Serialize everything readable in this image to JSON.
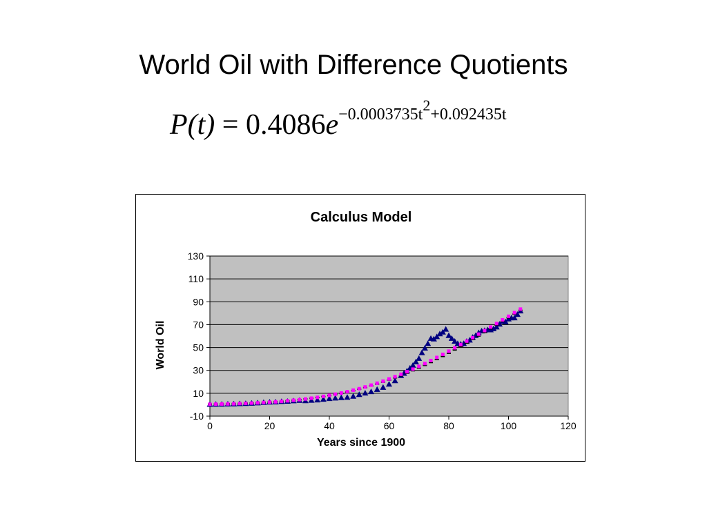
{
  "slide": {
    "title": "World Oil with Difference Quotients",
    "formula": {
      "lhs": "P(t)",
      "equals": " = ",
      "coef": "0.4086",
      "base": "e",
      "exp_part1": "−0.0003735t",
      "exp_square": "2",
      "exp_part2": "+0.092435t"
    }
  },
  "colors": {
    "plot_bg": "#c0c0c0",
    "data_markers": "#000080",
    "model_markers": "#ff00ff",
    "fit_markers": "#000000"
  },
  "chart_data": {
    "type": "scatter",
    "title": "Calculus Model",
    "xlabel": "Years since 1900",
    "ylabel": "World Oil",
    "xlim": [
      0,
      120
    ],
    "ylim": [
      -10,
      130
    ],
    "xticks": [
      0,
      20,
      40,
      60,
      80,
      100,
      120
    ],
    "yticks": [
      -10,
      10,
      30,
      50,
      70,
      90,
      110,
      130
    ],
    "grid": "horizontal",
    "series": [
      {
        "marker": "triangle",
        "color": "#000080",
        "x": [
          0,
          2,
          4,
          6,
          8,
          10,
          12,
          14,
          16,
          18,
          20,
          22,
          24,
          26,
          28,
          30,
          32,
          34,
          36,
          38,
          40,
          42,
          44,
          46,
          48,
          50,
          52,
          54,
          56,
          58,
          60,
          62,
          64,
          65,
          66,
          67,
          68,
          69,
          70,
          71,
          72,
          73,
          74,
          75,
          76,
          77,
          78,
          79,
          80,
          81,
          82,
          83,
          84,
          85,
          86,
          87,
          88,
          89,
          90,
          91,
          92,
          93,
          94,
          95,
          96,
          97,
          98,
          99,
          100,
          101,
          102,
          103,
          104
        ],
        "y": [
          0.3,
          0.4,
          0.5,
          0.6,
          0.7,
          0.9,
          1.1,
          1.3,
          1.6,
          2.0,
          2.3,
          2.4,
          2.8,
          3.0,
          3.4,
          3.8,
          3.5,
          3.9,
          4.2,
          4.8,
          5.4,
          5.8,
          6.2,
          6.5,
          7.4,
          8.9,
          10.2,
          11.4,
          13.4,
          15.2,
          18.0,
          21.0,
          25.5,
          27.5,
          29.5,
          32.0,
          34.5,
          37.5,
          40.5,
          45.5,
          49.5,
          53.5,
          58.0,
          57.5,
          59.5,
          62.0,
          63.5,
          66.0,
          60.5,
          58.0,
          55.5,
          53.5,
          53.0,
          53.5,
          55.5,
          56.5,
          59.0,
          60.5,
          63.0,
          64.5,
          65.0,
          65.5,
          65.5,
          66.5,
          68.0,
          70.5,
          73.0,
          72.5,
          75.0,
          76.0,
          76.0,
          79.0,
          82.0
        ]
      },
      {
        "marker": "square",
        "color": "#ff00ff",
        "x": [
          0,
          2,
          4,
          6,
          8,
          10,
          12,
          14,
          16,
          18,
          20,
          22,
          24,
          26,
          28,
          30,
          32,
          34,
          36,
          38,
          40,
          42,
          44,
          46,
          48,
          50,
          52,
          54,
          56,
          58,
          60,
          62,
          64,
          66,
          68,
          70,
          72,
          74,
          76,
          78,
          80,
          82,
          84,
          86,
          88,
          90,
          92,
          94,
          96,
          98,
          100,
          102,
          104
        ],
        "y": [
          0.4,
          0.5,
          0.6,
          0.7,
          0.8,
          1.0,
          1.2,
          1.4,
          1.6,
          1.9,
          2.2,
          2.5,
          2.9,
          3.4,
          3.9,
          4.4,
          5.0,
          5.7,
          6.4,
          7.3,
          8.2,
          9.2,
          10.2,
          11.4,
          12.7,
          14.0,
          15.5,
          17.1,
          18.8,
          20.6,
          22.5,
          24.5,
          26.6,
          28.8,
          31.1,
          33.5,
          36.0,
          38.6,
          41.3,
          44.0,
          46.8,
          49.7,
          52.6,
          55.6,
          58.6,
          61.7,
          64.8,
          67.9,
          71.0,
          74.2,
          77.3,
          80.5,
          83.6
        ]
      },
      {
        "marker": "dash",
        "color": "#000000",
        "x": [
          0,
          2,
          4,
          6,
          8,
          10,
          12,
          14,
          16,
          18,
          20,
          22,
          24,
          26,
          28,
          30,
          32,
          34,
          36,
          38,
          40,
          42,
          44,
          46,
          48,
          50,
          52,
          54,
          56,
          58,
          60,
          62,
          64,
          66,
          68,
          70,
          72,
          74,
          76,
          78,
          80,
          82,
          84,
          86,
          88,
          90,
          92,
          94,
          96,
          98,
          100,
          102,
          104
        ],
        "y": [
          0.5,
          0.6,
          0.7,
          0.8,
          1.0,
          1.1,
          1.3,
          1.5,
          1.7,
          2.0,
          2.3,
          2.6,
          3.0,
          3.4,
          3.9,
          4.4,
          5.0,
          5.6,
          6.3,
          7.1,
          8.0,
          8.9,
          9.9,
          11.0,
          12.2,
          13.5,
          14.9,
          16.4,
          18.0,
          19.7,
          21.5,
          23.4,
          25.4,
          27.5,
          29.7,
          32.0,
          34.4,
          36.9,
          39.5,
          42.2,
          45.0,
          47.9,
          50.9,
          53.9,
          57.0,
          60.1,
          63.2,
          66.4,
          69.6,
          72.8,
          76.0,
          79.2,
          82.5
        ]
      }
    ]
  }
}
